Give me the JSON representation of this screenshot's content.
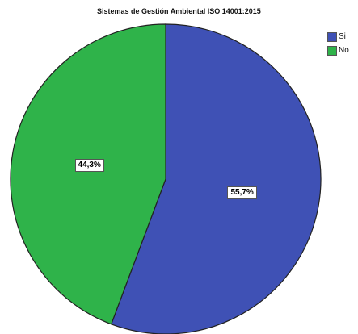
{
  "chart_data": {
    "type": "pie",
    "title": "Sistemas de Gestión Ambiental ISO 14001:2015",
    "slices": [
      {
        "label": "Si",
        "value": 55.7,
        "value_label": "55,7%",
        "color": "#3f51b5"
      },
      {
        "label": "No",
        "value": 44.3,
        "value_label": "44,3%",
        "color": "#2fb34a"
      }
    ],
    "start_angle_deg": 0,
    "direction": "clockwise",
    "legend_position": "top-right"
  }
}
